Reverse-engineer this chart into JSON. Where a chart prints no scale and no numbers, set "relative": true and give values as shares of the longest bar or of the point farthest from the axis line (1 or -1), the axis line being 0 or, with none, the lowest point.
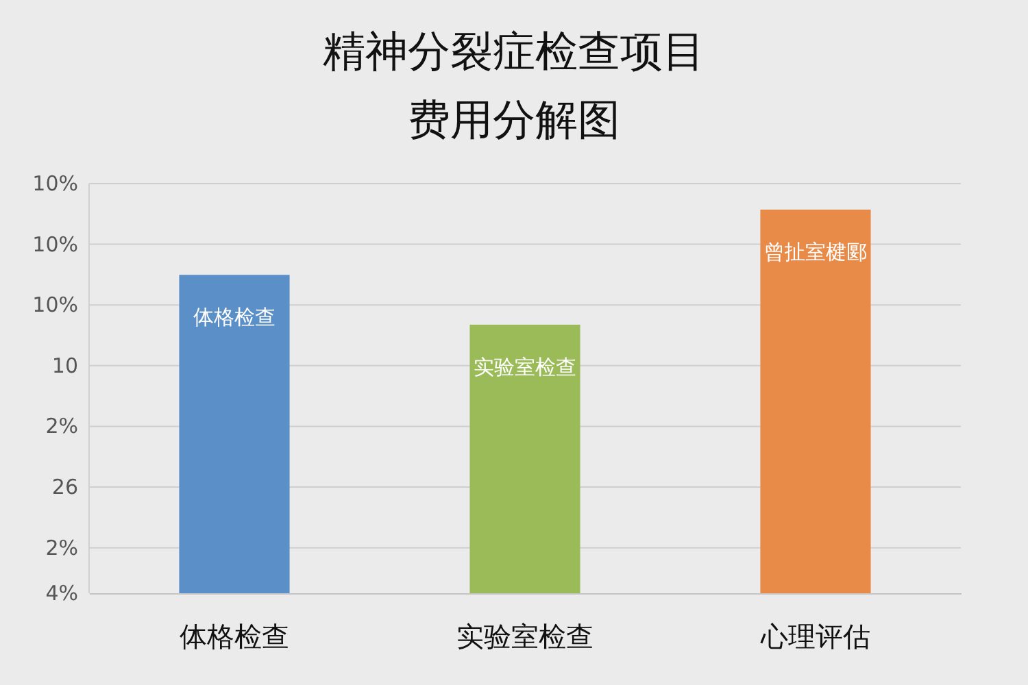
{
  "chart_data": {
    "type": "bar",
    "title": "精神分裂症检查项目费用分解图",
    "categories": [
      "体格检查",
      "实验室检查",
      "心理评估"
    ],
    "values": [
      0.83,
      0.7,
      1
    ],
    "colors": [
      "#5b8fc7",
      "#9bbb59",
      "#e88a48"
    ],
    "relative": true,
    "grid": "y",
    "annotations": [
      "10%",
      "10%",
      "10%",
      "10",
      "2%",
      "26",
      "2%",
      "4%",
      {
        "text": "体格检查",
        "x": "体格检查",
        "y": 0.83
      },
      {
        "text": "实验室检查",
        "x": "实验室检查",
        "y": 0.7
      },
      {
        "text": "曾扯室楗郾",
        "x": "心理评估",
        "y": 1
      }
    ]
  }
}
